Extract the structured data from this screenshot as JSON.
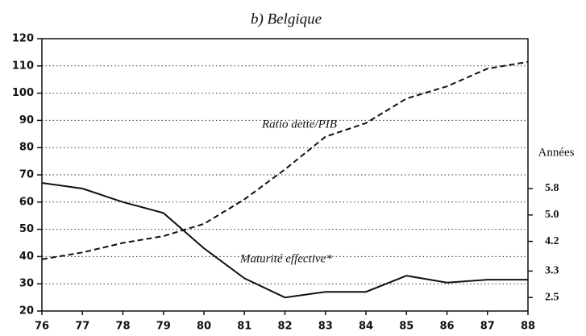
{
  "chart_data": {
    "type": "line",
    "title": "b) Belgique",
    "y2_label": "Années",
    "annotations": [
      "Ratio dette/PIB",
      "Maturité effective*"
    ],
    "categories": [
      "76",
      "77",
      "78",
      "79",
      "80",
      "81",
      "82",
      "83",
      "84",
      "85",
      "86",
      "87",
      "88"
    ],
    "series": [
      {
        "name": "Ratio dette/PIB",
        "color": "#111111",
        "dash": true,
        "values": [
          39,
          41.5,
          45,
          47.5,
          52,
          61,
          72,
          84,
          89,
          98,
          102.5,
          109,
          111.5
        ]
      },
      {
        "name": "Maturité effective*",
        "color": "#111111",
        "dash": false,
        "axis": "y2",
        "values": [
          5.97,
          5.8,
          5.39,
          5.06,
          3.99,
          3.08,
          2.5,
          2.67,
          2.67,
          3.16,
          2.95,
          3.04,
          3.04
        ]
      }
    ],
    "ylim": [
      20,
      120
    ],
    "yticks": [
      20,
      30,
      40,
      50,
      60,
      70,
      80,
      90,
      100,
      110,
      120
    ],
    "y2lim": [
      2.09,
      10.34
    ],
    "y2ticks": [
      5.8,
      {
        "value": 5,
        "label": "5.0"
      },
      4.2,
      3.3,
      2.5
    ],
    "grid": true
  }
}
